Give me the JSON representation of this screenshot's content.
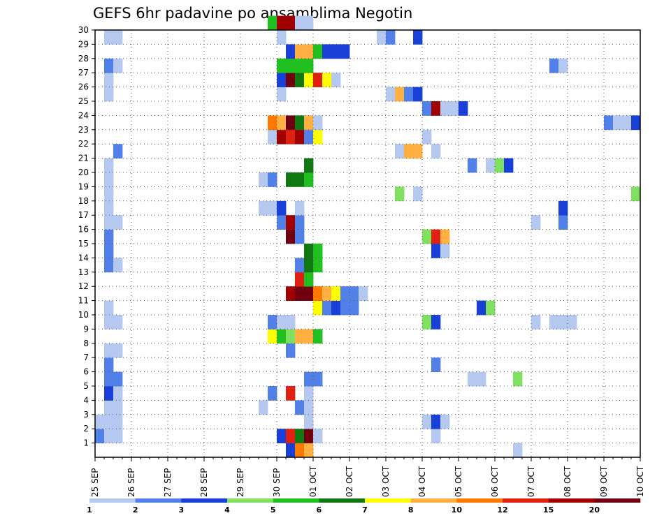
{
  "chart_data": {
    "type": "heatmap",
    "title": "GEFS 6hr padavine po ansamblima Negotin",
    "xlabel": "",
    "ylabel": "",
    "x_tick_labels": [
      "25 SEP",
      "26 SEP",
      "27 SEP",
      "28 SEP",
      "29 SEP",
      "30 SEP",
      "01 OCT",
      "02 OCT",
      "03 OCT",
      "04 OCT",
      "05 OCT",
      "06 OCT",
      "07 OCT",
      "08 OCT",
      "09 OCT",
      "10 OCT"
    ],
    "y_tick_labels": [
      "1",
      "2",
      "3",
      "4",
      "5",
      "6",
      "7",
      "8",
      "9",
      "10",
      "11",
      "12",
      "13",
      "14",
      "15",
      "16",
      "17",
      "18",
      "19",
      "20",
      "21",
      "22",
      "23",
      "24",
      "25",
      "26",
      "27",
      "28",
      "29",
      "30"
    ],
    "x_range_steps": [
      0,
      60
    ],
    "y_range": [
      0,
      30
    ],
    "steps_per_day": 4,
    "grid": true,
    "colorbar": {
      "placement": "bottom",
      "levels": [
        "1",
        "2",
        "3",
        "4",
        "5",
        "6",
        "7",
        "8",
        "10",
        "12",
        "15",
        "20"
      ],
      "colors": [
        "#b4c8f0",
        "#5080e8",
        "#1840d8",
        "#80e060",
        "#20c020",
        "#107810",
        "#ffff00",
        "#ffb040",
        "#ff7800",
        "#e02010",
        "#a00000",
        "#700010"
      ]
    },
    "cells": [
      [
        0,
        1,
        2
      ],
      [
        0,
        2,
        1
      ],
      [
        1,
        1,
        1
      ],
      [
        1,
        2,
        1
      ],
      [
        1,
        3,
        1
      ],
      [
        1,
        4,
        3
      ],
      [
        1,
        5,
        2
      ],
      [
        1,
        6,
        2
      ],
      [
        1,
        7,
        1
      ],
      [
        1,
        9,
        1
      ],
      [
        1,
        10,
        1
      ],
      [
        1,
        13,
        2
      ],
      [
        1,
        14,
        2
      ],
      [
        1,
        15,
        2
      ],
      [
        1,
        16,
        1
      ],
      [
        1,
        17,
        1
      ],
      [
        1,
        18,
        1
      ],
      [
        1,
        19,
        1
      ],
      [
        1,
        20,
        1
      ],
      [
        1,
        25,
        1
      ],
      [
        1,
        26,
        1
      ],
      [
        1,
        27,
        2
      ],
      [
        1,
        29,
        1
      ],
      [
        2,
        1,
        1
      ],
      [
        2,
        2,
        1
      ],
      [
        2,
        3,
        1
      ],
      [
        2,
        4,
        1
      ],
      [
        2,
        5,
        2
      ],
      [
        2,
        7,
        1
      ],
      [
        2,
        9,
        1
      ],
      [
        2,
        13,
        1
      ],
      [
        2,
        16,
        1
      ],
      [
        2,
        21,
        2
      ],
      [
        2,
        27,
        1
      ],
      [
        2,
        29,
        1
      ],
      [
        18,
        3,
        1
      ],
      [
        18,
        17,
        1
      ],
      [
        18,
        19,
        1
      ],
      [
        19,
        4,
        2
      ],
      [
        19,
        8,
        7
      ],
      [
        19,
        9,
        2
      ],
      [
        19,
        17,
        1
      ],
      [
        19,
        19,
        2
      ],
      [
        19,
        22,
        1
      ],
      [
        19,
        23,
        9
      ],
      [
        19,
        30,
        5
      ],
      [
        20,
        1,
        3
      ],
      [
        20,
        8,
        5
      ],
      [
        20,
        9,
        1
      ],
      [
        20,
        16,
        2
      ],
      [
        20,
        17,
        3
      ],
      [
        20,
        22,
        11
      ],
      [
        20,
        23,
        8
      ],
      [
        20,
        25,
        1
      ],
      [
        20,
        26,
        3
      ],
      [
        20,
        27,
        5
      ],
      [
        20,
        29,
        1
      ],
      [
        20,
        30,
        11
      ],
      [
        21,
        0,
        3
      ],
      [
        21,
        1,
        10
      ],
      [
        21,
        4,
        10
      ],
      [
        21,
        7,
        2
      ],
      [
        21,
        8,
        4
      ],
      [
        21,
        9,
        1
      ],
      [
        21,
        11,
        11
      ],
      [
        21,
        15,
        12
      ],
      [
        21,
        16,
        11
      ],
      [
        21,
        19,
        6
      ],
      [
        21,
        22,
        10
      ],
      [
        21,
        23,
        12
      ],
      [
        21,
        26,
        12
      ],
      [
        21,
        27,
        5
      ],
      [
        21,
        28,
        3
      ],
      [
        21,
        30,
        11
      ],
      [
        22,
        0,
        9
      ],
      [
        22,
        1,
        6
      ],
      [
        22,
        3,
        2
      ],
      [
        22,
        8,
        8
      ],
      [
        22,
        11,
        12
      ],
      [
        22,
        12,
        10
      ],
      [
        22,
        13,
        2
      ],
      [
        22,
        15,
        2
      ],
      [
        22,
        16,
        2
      ],
      [
        22,
        17,
        1
      ],
      [
        22,
        19,
        6
      ],
      [
        22,
        22,
        11
      ],
      [
        22,
        23,
        6
      ],
      [
        22,
        26,
        6
      ],
      [
        22,
        27,
        5
      ],
      [
        22,
        28,
        8
      ],
      [
        22,
        30,
        1
      ],
      [
        23,
        0,
        8
      ],
      [
        23,
        1,
        12
      ],
      [
        23,
        2,
        1
      ],
      [
        23,
        3,
        1
      ],
      [
        23,
        4,
        1
      ],
      [
        23,
        5,
        2
      ],
      [
        23,
        8,
        8
      ],
      [
        23,
        11,
        12
      ],
      [
        23,
        12,
        5
      ],
      [
        23,
        13,
        6
      ],
      [
        23,
        14,
        6
      ],
      [
        23,
        19,
        5
      ],
      [
        23,
        20,
        6
      ],
      [
        23,
        22,
        2
      ],
      [
        23,
        23,
        8
      ],
      [
        23,
        26,
        7
      ],
      [
        23,
        27,
        5
      ],
      [
        23,
        28,
        8
      ],
      [
        23,
        30,
        1
      ],
      [
        24,
        1,
        1
      ],
      [
        24,
        5,
        2
      ],
      [
        24,
        8,
        5
      ],
      [
        24,
        10,
        7
      ],
      [
        24,
        11,
        9
      ],
      [
        24,
        13,
        5
      ],
      [
        24,
        14,
        5
      ],
      [
        24,
        22,
        7
      ],
      [
        24,
        23,
        1
      ],
      [
        24,
        26,
        10
      ],
      [
        24,
        28,
        5
      ],
      [
        25,
        10,
        2
      ],
      [
        25,
        11,
        8
      ],
      [
        25,
        26,
        7
      ],
      [
        25,
        28,
        3
      ],
      [
        26,
        10,
        3
      ],
      [
        26,
        11,
        7
      ],
      [
        26,
        26,
        1
      ],
      [
        26,
        28,
        3
      ],
      [
        27,
        10,
        2
      ],
      [
        27,
        11,
        2
      ],
      [
        27,
        28,
        3
      ],
      [
        28,
        10,
        2
      ],
      [
        28,
        11,
        2
      ],
      [
        29,
        11,
        1
      ],
      [
        31,
        29,
        1
      ],
      [
        32,
        25,
        1
      ],
      [
        32,
        29,
        2
      ],
      [
        33,
        18,
        4
      ],
      [
        33,
        21,
        1
      ],
      [
        33,
        25,
        8
      ],
      [
        34,
        25,
        2
      ],
      [
        34,
        21,
        8
      ],
      [
        35,
        18,
        1
      ],
      [
        35,
        21,
        8
      ],
      [
        35,
        25,
        3
      ],
      [
        35,
        29,
        3
      ],
      [
        36,
        2,
        1
      ],
      [
        36,
        9,
        4
      ],
      [
        36,
        15,
        4
      ],
      [
        36,
        22,
        1
      ],
      [
        36,
        24,
        2
      ],
      [
        37,
        1,
        1
      ],
      [
        37,
        2,
        3
      ],
      [
        37,
        6,
        2
      ],
      [
        37,
        9,
        3
      ],
      [
        37,
        14,
        3
      ],
      [
        37,
        15,
        10
      ],
      [
        37,
        21,
        1
      ],
      [
        37,
        24,
        11
      ],
      [
        38,
        2,
        1
      ],
      [
        38,
        14,
        1
      ],
      [
        38,
        15,
        8
      ],
      [
        38,
        24,
        1
      ],
      [
        39,
        24,
        1
      ],
      [
        40,
        24,
        3
      ],
      [
        41,
        5,
        1
      ],
      [
        41,
        20,
        2
      ],
      [
        42,
        5,
        1
      ],
      [
        42,
        10,
        3
      ],
      [
        43,
        10,
        4
      ],
      [
        43,
        20,
        1
      ],
      [
        44,
        20,
        4
      ],
      [
        45,
        20,
        3
      ],
      [
        46,
        0,
        1
      ],
      [
        46,
        5,
        4
      ],
      [
        48,
        9,
        1
      ],
      [
        48,
        16,
        1
      ],
      [
        50,
        27,
        2
      ],
      [
        50,
        9,
        1
      ],
      [
        51,
        27,
        1
      ],
      [
        51,
        9,
        1
      ],
      [
        51,
        16,
        2
      ],
      [
        51,
        17,
        3
      ],
      [
        52,
        9,
        1
      ],
      [
        56,
        23,
        2
      ],
      [
        57,
        23,
        1
      ],
      [
        58,
        23,
        1
      ],
      [
        59,
        23,
        3
      ],
      [
        59,
        18,
        4
      ]
    ]
  }
}
